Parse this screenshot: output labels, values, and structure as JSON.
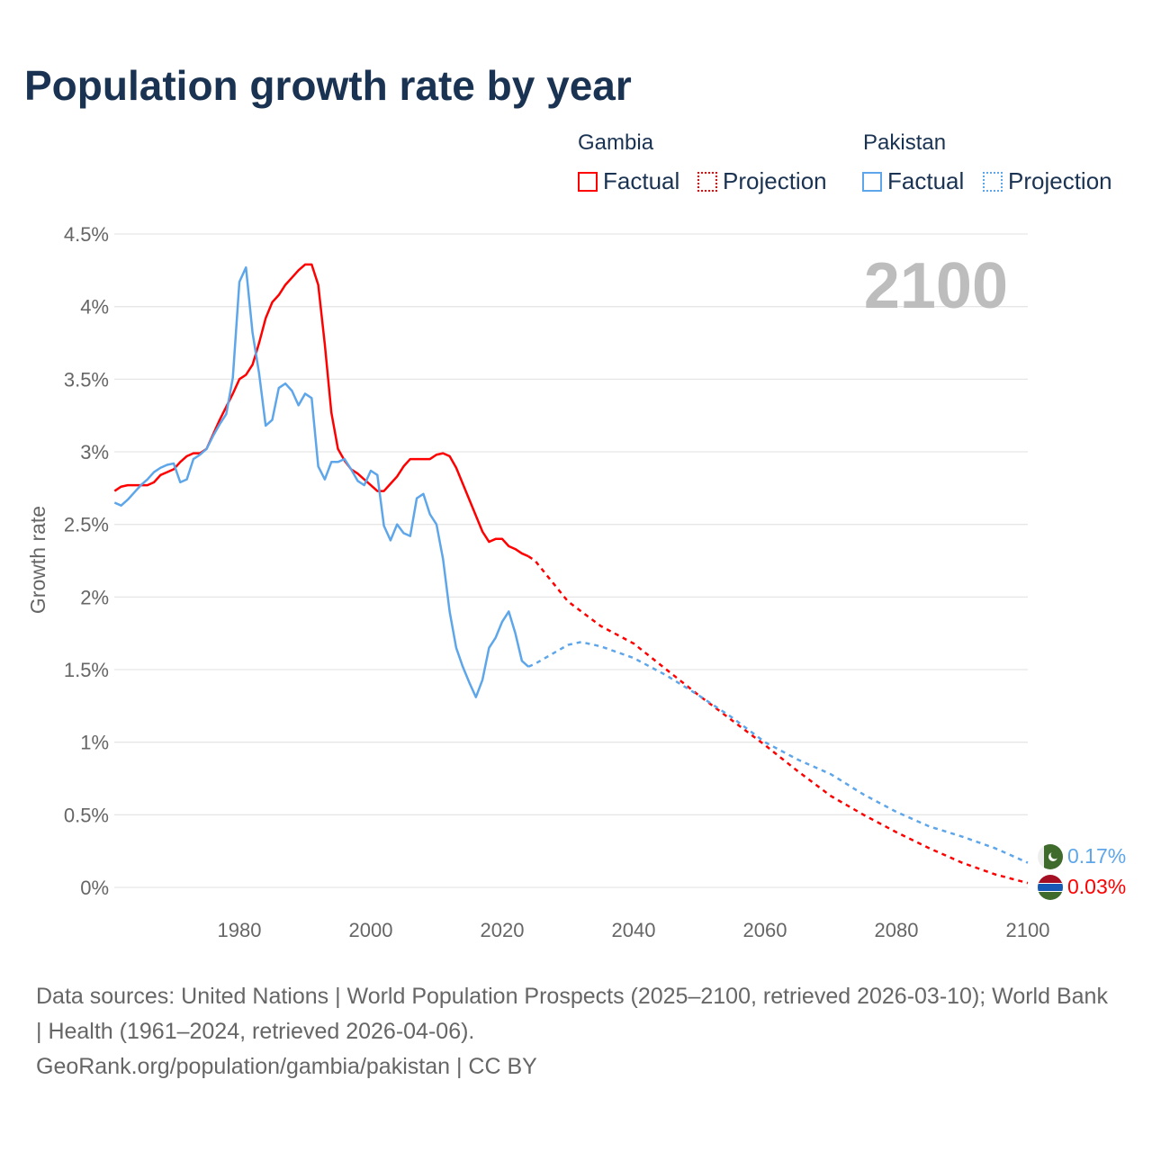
{
  "title": "Population growth rate by year",
  "legend": {
    "groups": [
      {
        "name": "Gambia",
        "factual": "Factual",
        "projection": "Projection",
        "color": "#ff0000"
      },
      {
        "name": "Pakistan",
        "factual": "Factual",
        "projection": "Projection",
        "color": "#5ea6ea"
      }
    ]
  },
  "year_watermark": "2100",
  "end_labels": {
    "pakistan": "0.17%",
    "gambia": "0.03%"
  },
  "source": {
    "line1": "Data sources: United Nations | World Population Prospects (2025–2100, retrieved 2026-03-10); World Bank | Health (1961–2024, retrieved 2026-04-06).",
    "line2": "GeoRank.org/population/gambia/pakistan | CC BY"
  },
  "chart_data": {
    "type": "line",
    "title": "Population growth rate by year",
    "xlabel": "",
    "ylabel": "Growth rate",
    "xlim": [
      1961,
      2100
    ],
    "ylim": [
      0,
      4.5
    ],
    "xticks": [
      "1980",
      "2000",
      "2020",
      "2040",
      "2060",
      "2080",
      "2100"
    ],
    "yticks": [
      "0%",
      "0.5%",
      "1%",
      "1.5%",
      "2%",
      "2.5%",
      "3%",
      "3.5%",
      "4%",
      "4.5%"
    ],
    "grid": true,
    "legend_position": "top-right",
    "series": [
      {
        "name": "Gambia Factual",
        "color": "#ff0000",
        "dashed": false,
        "start_year": 1961,
        "values": [
          2.73,
          2.76,
          2.77,
          2.77,
          2.77,
          2.77,
          2.79,
          2.84,
          2.86,
          2.88,
          2.93,
          2.97,
          2.99,
          2.99,
          3.02,
          3.12,
          3.22,
          3.31,
          3.4,
          3.5,
          3.53,
          3.6,
          3.75,
          3.92,
          4.03,
          4.08,
          4.15,
          4.2,
          4.25,
          4.29,
          4.29,
          4.15,
          3.74,
          3.27,
          3.02,
          2.94,
          2.88,
          2.85,
          2.81,
          2.77,
          2.73,
          2.73,
          2.78,
          2.83,
          2.9,
          2.95,
          2.95,
          2.95,
          2.95,
          2.98,
          2.99,
          2.97,
          2.89,
          2.78,
          2.67,
          2.56,
          2.45,
          2.38,
          2.4,
          2.4,
          2.35,
          2.33,
          2.3,
          2.28
        ]
      },
      {
        "name": "Gambia Projection",
        "color": "#ff0000",
        "dashed": true,
        "points": [
          [
            2024,
            2.28
          ],
          [
            2025,
            2.25
          ],
          [
            2030,
            1.97
          ],
          [
            2035,
            1.8
          ],
          [
            2040,
            1.68
          ],
          [
            2045,
            1.5
          ],
          [
            2050,
            1.32
          ],
          [
            2055,
            1.15
          ],
          [
            2060,
            0.98
          ],
          [
            2065,
            0.8
          ],
          [
            2070,
            0.63
          ],
          [
            2075,
            0.5
          ],
          [
            2080,
            0.38
          ],
          [
            2085,
            0.27
          ],
          [
            2090,
            0.17
          ],
          [
            2095,
            0.09
          ],
          [
            2100,
            0.03
          ]
        ]
      },
      {
        "name": "Pakistan Factual",
        "color": "#5ea6ea",
        "dashed": false,
        "start_year": 1961,
        "values": [
          2.65,
          2.63,
          2.67,
          2.72,
          2.77,
          2.81,
          2.86,
          2.89,
          2.91,
          2.92,
          2.79,
          2.81,
          2.95,
          2.98,
          3.02,
          3.11,
          3.19,
          3.26,
          3.51,
          4.17,
          4.27,
          3.82,
          3.54,
          3.18,
          3.22,
          3.44,
          3.47,
          3.42,
          3.32,
          3.4,
          3.37,
          2.9,
          2.81,
          2.93,
          2.93,
          2.95,
          2.88,
          2.8,
          2.77,
          2.87,
          2.84,
          2.49,
          2.39,
          2.5,
          2.44,
          2.42,
          2.68,
          2.71,
          2.57,
          2.5,
          2.26,
          1.9,
          1.65,
          1.52,
          1.41,
          1.31,
          1.43,
          1.65,
          1.72,
          1.83,
          1.9,
          1.75,
          1.56,
          1.52
        ]
      },
      {
        "name": "Pakistan Projection",
        "color": "#5ea6ea",
        "dashed": true,
        "points": [
          [
            2024,
            1.52
          ],
          [
            2025,
            1.54
          ],
          [
            2030,
            1.67
          ],
          [
            2032,
            1.69
          ],
          [
            2035,
            1.66
          ],
          [
            2040,
            1.58
          ],
          [
            2045,
            1.46
          ],
          [
            2050,
            1.32
          ],
          [
            2055,
            1.17
          ],
          [
            2060,
            1.0
          ],
          [
            2065,
            0.88
          ],
          [
            2070,
            0.78
          ],
          [
            2075,
            0.64
          ],
          [
            2080,
            0.52
          ],
          [
            2085,
            0.42
          ],
          [
            2090,
            0.35
          ],
          [
            2095,
            0.27
          ],
          [
            2100,
            0.17
          ]
        ]
      }
    ]
  }
}
